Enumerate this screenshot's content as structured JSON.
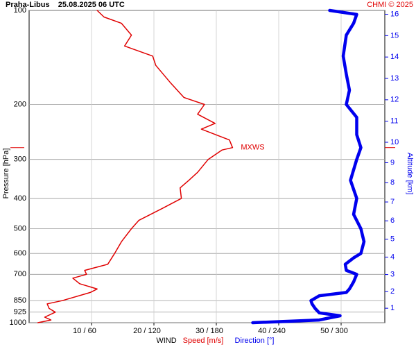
{
  "chart_data": {
    "type": "line",
    "title": "Praha-Libus    25.08.2025 06 UTC",
    "credit": "CHMI © 2025",
    "ylabel": "Pressure [hPa]",
    "y2label": "Altitude [km]",
    "xlabel": "WIND",
    "xlabel_speed": "Speed [m/s]",
    "xlabel_direction": "Direction [°]",
    "ylog": true,
    "ylim": [
      1000,
      100
    ],
    "yticks": [
      100,
      200,
      300,
      400,
      500,
      600,
      700,
      850,
      925,
      1000
    ],
    "y2ticks": [
      1,
      2,
      3,
      4,
      5,
      6,
      7,
      8,
      9,
      10,
      11,
      12,
      13,
      14,
      15,
      16
    ],
    "xlim": [
      0,
      57
    ],
    "x2lim": [
      0,
      342
    ],
    "xticks": [
      {
        "value": 10,
        "label": "10 / 60"
      },
      {
        "value": 20,
        "label": "20 / 120"
      },
      {
        "value": 30,
        "label": "30 / 180"
      },
      {
        "value": 40,
        "label": "40 / 240"
      },
      {
        "value": 50,
        "label": "50 / 300"
      }
    ],
    "grid": true,
    "annotation": {
      "label": "MXWS",
      "pressure": 275
    },
    "series": [
      {
        "name": "Speed",
        "color": "#e00000",
        "axis": "x",
        "pressure": [
          1000,
          980,
          960,
          925,
          900,
          870,
          850,
          800,
          780,
          750,
          720,
          700,
          680,
          650,
          600,
          550,
          500,
          470,
          430,
          400,
          370,
          350,
          330,
          300,
          280,
          275,
          260,
          240,
          230,
          215,
          200,
          190,
          170,
          150,
          140,
          130,
          120,
          110,
          105,
          100
        ],
        "values": [
          1.4,
          3.5,
          2.5,
          4.2,
          3.2,
          2.9,
          5.3,
          9.8,
          10.9,
          8.1,
          7.0,
          9.2,
          8.9,
          12.6,
          13.7,
          14.8,
          16.4,
          17.6,
          21.4,
          24.4,
          24.2,
          25.6,
          27.0,
          28.7,
          30.9,
          32.6,
          32.1,
          27.6,
          29.8,
          27.0,
          28.1,
          24.8,
          22.6,
          20.3,
          19.8,
          15.3,
          16.4,
          14.8,
          12.0,
          10.9
        ]
      },
      {
        "name": "Direction",
        "color": "#0000ee",
        "axis": "x2",
        "pressure": [
          1000,
          980,
          950,
          930,
          900,
          870,
          850,
          820,
          800,
          780,
          740,
          700,
          680,
          650,
          620,
          600,
          550,
          500,
          450,
          400,
          350,
          300,
          275,
          250,
          220,
          200,
          180,
          160,
          140,
          120,
          110,
          103,
          100
        ],
        "values": [
          215,
          279,
          299,
          279,
          275,
          272,
          271,
          279,
          305,
          308,
          312,
          315,
          305,
          304,
          312,
          319,
          322,
          319,
          312,
          315,
          309,
          315,
          319,
          315,
          315,
          305,
          308,
          305,
          302,
          305,
          312,
          315,
          289
        ]
      }
    ]
  }
}
